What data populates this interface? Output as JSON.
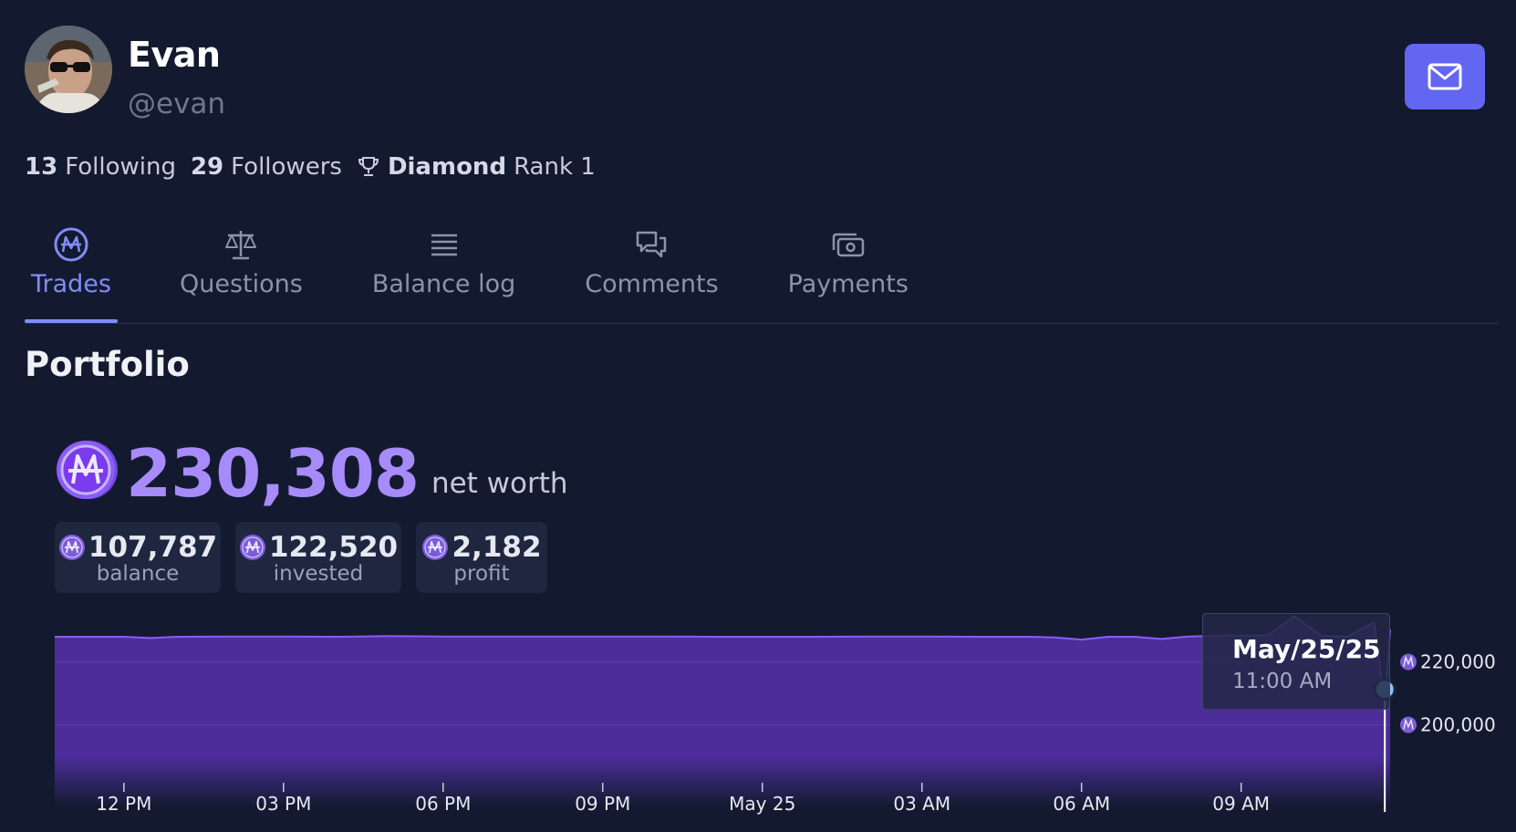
{
  "profile": {
    "name": "Evan",
    "handle": "@evan",
    "following_count": "13",
    "following_label": "Following",
    "followers_count": "29",
    "followers_label": "Followers",
    "league": "Diamond",
    "rank": "Rank 1"
  },
  "tabs": [
    {
      "label": "Trades",
      "icon": "mana-coin-icon",
      "active": true
    },
    {
      "label": "Questions",
      "icon": "scale-icon",
      "active": false
    },
    {
      "label": "Balance log",
      "icon": "list-icon",
      "active": false
    },
    {
      "label": "Comments",
      "icon": "chat-bubbles-icon",
      "active": false
    },
    {
      "label": "Payments",
      "icon": "cash-icon",
      "active": false
    }
  ],
  "portfolio": {
    "title": "Portfolio",
    "net_worth": "230,308",
    "net_worth_label": "net worth",
    "cards": [
      {
        "value": "107,787",
        "label": "balance"
      },
      {
        "value": "122,520",
        "label": "invested"
      },
      {
        "value": "2,182",
        "label": "profit"
      }
    ]
  },
  "colors": {
    "background": "#131a2f",
    "accent": "#818cf8",
    "mana_purple": "#a78bfa",
    "button": "#6366f1",
    "chart_fill": "#4c2d99"
  },
  "tooltip": {
    "date": "May/25/25",
    "time": "11:00 AM"
  },
  "chart_data": {
    "type": "area",
    "x_ticks": [
      "12 PM",
      "03 PM",
      "06 PM",
      "09 PM",
      "May 25",
      "03 AM",
      "06 AM",
      "09 AM"
    ],
    "y_ticks": [
      "220,000",
      "200,000"
    ],
    "y_tick_values": [
      220000,
      200000
    ],
    "ylim": [
      181000,
      228000
    ],
    "x_range_hours": [
      -1.3,
      23.8
    ],
    "series": [
      {
        "x": [
          -1.3,
          0,
          0.5,
          1,
          2,
          3,
          4,
          5,
          6,
          7,
          8,
          9,
          10,
          11,
          12,
          13,
          14,
          15,
          16,
          17,
          17.5,
          18,
          18.5,
          19,
          19.5,
          20,
          20.5,
          21,
          21.5,
          22,
          22.5,
          23,
          23.3,
          23.5,
          23.7,
          23.8
        ],
        "y": [
          228000,
          228000,
          227600,
          228000,
          228100,
          228100,
          228000,
          228200,
          228100,
          228100,
          228100,
          228100,
          228100,
          228000,
          228000,
          228000,
          228100,
          228100,
          228000,
          228000,
          227800,
          227100,
          228000,
          228000,
          227300,
          228100,
          228300,
          228400,
          228400,
          234500,
          228400,
          228000,
          231000,
          232500,
          207000,
          230308
        ]
      }
    ],
    "legend": "none",
    "grid": true
  }
}
